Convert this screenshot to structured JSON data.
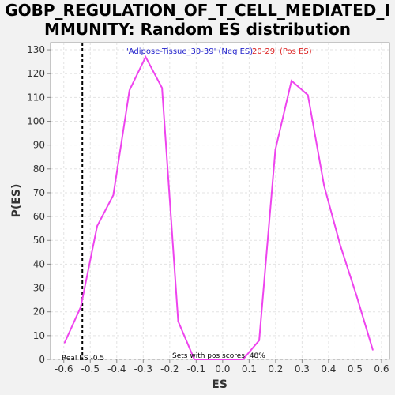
{
  "title": {
    "line1": "GOBP_REGULATION_OF_T_CELL_MEDIATED_I",
    "line2": "MMUNITY: Random ES distribution"
  },
  "chart_data": {
    "type": "line",
    "xlabel": "ES",
    "ylabel": "P(ES)",
    "xlim": [
      -0.65,
      0.63
    ],
    "ylim": [
      0,
      133
    ],
    "x_ticks": [
      -0.6,
      -0.5,
      -0.4,
      -0.3,
      -0.2,
      -0.1,
      0.0,
      0.1,
      0.2,
      0.3,
      0.4,
      0.5,
      0.6
    ],
    "x_tick_labels": [
      "-0.6",
      "-0.5",
      "-0.4",
      "-0.3",
      "-0.2",
      "-0.1",
      "0.0",
      "0.1",
      "0.2",
      "0.3",
      "0.4",
      "0.5",
      "0.6"
    ],
    "y_ticks": [
      0,
      10,
      20,
      30,
      40,
      50,
      60,
      70,
      80,
      90,
      100,
      110,
      120,
      130
    ],
    "y_tick_labels": [
      "0",
      "10",
      "20",
      "30",
      "40",
      "50",
      "60",
      "70",
      "80",
      "90",
      "100",
      "110",
      "120",
      "130"
    ],
    "grid": true,
    "series": [
      {
        "color": "#ee44ee",
        "points": [
          [
            -0.597,
            7
          ],
          [
            -0.536,
            22
          ],
          [
            -0.474,
            56
          ],
          [
            -0.413,
            69
          ],
          [
            -0.352,
            113
          ],
          [
            -0.291,
            127
          ],
          [
            -0.229,
            114
          ],
          [
            -0.168,
            16
          ],
          [
            -0.107,
            0
          ],
          [
            -0.046,
            0
          ],
          [
            0.016,
            0
          ],
          [
            0.077,
            0
          ],
          [
            0.138,
            8
          ],
          [
            0.199,
            88
          ],
          [
            0.26,
            117
          ],
          [
            0.322,
            111
          ],
          [
            0.383,
            73
          ],
          [
            0.444,
            48
          ],
          [
            0.505,
            27
          ],
          [
            0.567,
            4
          ]
        ]
      }
    ],
    "real_es": -0.53,
    "legend": {
      "neg_label": "'Adipose-Tissue_30-39' (Neg ES)",
      "neg_color": "#2222cc",
      "pos_label": "20-29' (Pos ES)",
      "pos_color": "#dd2222"
    },
    "annotations": {
      "real_es": "Real ES -0.5",
      "pos_scores": "Sets with pos scores: 48%"
    }
  }
}
